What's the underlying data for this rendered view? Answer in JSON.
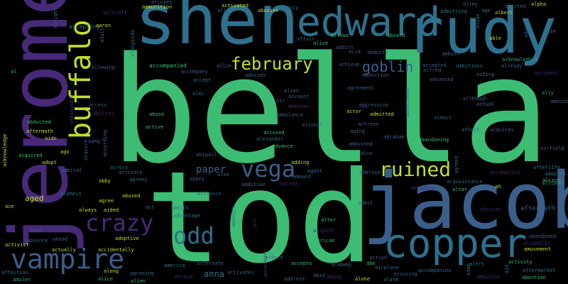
{
  "palette": {
    "background": "#000000",
    "green": "#3dbc74",
    "teal": "#2d718e",
    "blue": "#3b5f8b",
    "purple": "#482979",
    "lime": "#c1df24",
    "seafoam": "#2ea386"
  },
  "words": [
    {
      "text": "bella"
    },
    {
      "text": "tod"
    },
    {
      "text": "jacob"
    },
    {
      "text": "jerome"
    },
    {
      "text": "shen"
    },
    {
      "text": "rudy"
    },
    {
      "text": "edward"
    },
    {
      "text": "copper"
    },
    {
      "text": "buffalo"
    },
    {
      "text": "vampire"
    },
    {
      "text": "vega"
    },
    {
      "text": "crazy"
    },
    {
      "text": "odd"
    },
    {
      "text": "ruined"
    },
    {
      "text": "february"
    },
    {
      "text": "goblin"
    },
    {
      "text": "paper"
    },
    {
      "text": "anna"
    },
    {
      "text": "accompanied"
    },
    {
      "text": "allowing"
    },
    {
      "text": "accepting"
    },
    {
      "text": "abducted"
    },
    {
      "text": "aftermath"
    },
    {
      "text": "acquired"
    },
    {
      "text": "aged"
    },
    {
      "text": "activist"
    },
    {
      "text": "affection"
    },
    {
      "text": "amulet"
    },
    {
      "text": "alice"
    },
    {
      "text": "alien"
    },
    {
      "text": "agreeing"
    },
    {
      "text": "along"
    },
    {
      "text": "accidentally"
    },
    {
      "text": "actually"
    },
    {
      "text": "always"
    },
    {
      "text": "aided"
    },
    {
      "text": "adoptive"
    },
    {
      "text": "agree"
    },
    {
      "text": "abused"
    },
    {
      "text": "abby"
    },
    {
      "text": "agrees"
    },
    {
      "text": "alamein"
    },
    {
      "text": "admiral"
    },
    {
      "text": "adopt"
    },
    {
      "text": "ago"
    },
    {
      "text": "aide"
    },
    {
      "text": "abuse"
    },
    {
      "text": "active"
    },
    {
      "text": "ability"
    },
    {
      "text": "access"
    },
    {
      "text": "accompany"
    },
    {
      "text": "accept"
    },
    {
      "text": "alec"
    },
    {
      "text": "alien"
    },
    {
      "text": "account"
    },
    {
      "text": "abandon"
    },
    {
      "text": "air"
    },
    {
      "text": "alcohol"
    },
    {
      "text": "ambulance"
    },
    {
      "text": "accused"
    },
    {
      "text": "alexander"
    },
    {
      "text": "advance"
    },
    {
      "text": "adding"
    },
    {
      "text": "agent"
    },
    {
      "text": "amount"
    },
    {
      "text": "hatred"
    },
    {
      "text": "addition"
    },
    {
      "text": "alex"
    },
    {
      "text": "abigail"
    },
    {
      "text": "abbey"
    },
    {
      "text": "alliance"
    },
    {
      "text": "admits"
    },
    {
      "text": "advantage"
    },
    {
      "text": "act"
    },
    {
      "text": "alternate"
    },
    {
      "text": "america"
    },
    {
      "text": "afraid"
    },
    {
      "text": "activates"
    },
    {
      "text": "afford"
    },
    {
      "text": "accepts"
    },
    {
      "text": "american"
    },
    {
      "text": "alter"
    },
    {
      "text": "amid"
    },
    {
      "text": "address"
    },
    {
      "text": "academy"
    },
    {
      "text": "among"
    },
    {
      "text": "airplane"
    },
    {
      "text": "alone"
    },
    {
      "text": "accusing"
    },
    {
      "text": "alarm"
    },
    {
      "text": "accompanies"
    },
    {
      "text": "ambition"
    },
    {
      "text": "alert"
    },
    {
      "text": "activity"
    },
    {
      "text": "aftermarket"
    },
    {
      "text": "abortion"
    },
    {
      "text": "amusement"
    },
    {
      "text": "abandoned"
    },
    {
      "text": "aftermath"
    },
    {
      "text": "alison"
    },
    {
      "text": "adopted"
    },
    {
      "text": "afterlife"
    },
    {
      "text": "airfield"
    },
    {
      "text": "amends"
    },
    {
      "text": "ally"
    },
    {
      "text": "accident"
    },
    {
      "text": "already"
    },
    {
      "text": "acknowledges"
    },
    {
      "text": "aim"
    },
    {
      "text": "alpha"
    },
    {
      "text": "alerted"
    },
    {
      "text": "albert"
    },
    {
      "text": "admitting"
    },
    {
      "text": "age"
    },
    {
      "text": "alley"
    },
    {
      "text": "able"
    },
    {
      "text": "ambush"
    },
    {
      "text": "accepted"
    },
    {
      "text": "alfred"
    },
    {
      "text": "ambitious"
    },
    {
      "text": "advanced"
    },
    {
      "text": "acting"
    },
    {
      "text": "although"
    },
    {
      "text": "actual"
    },
    {
      "text": "almost"
    },
    {
      "text": "affect"
    },
    {
      "text": "acquires"
    },
    {
      "text": "abandoning"
    },
    {
      "text": "abraham"
    },
    {
      "text": "aggressive"
    },
    {
      "text": "admitted"
    },
    {
      "text": "actor"
    },
    {
      "text": "agreement"
    },
    {
      "text": "abduction"
    },
    {
      "text": "achieve"
    },
    {
      "text": "acid"
    },
    {
      "text": "addict"
    },
    {
      "text": "allows"
    },
    {
      "text": "aboard"
    },
    {
      "text": "affair"
    },
    {
      "text": "alive"
    },
    {
      "text": "abducts"
    },
    {
      "text": "agency"
    },
    {
      "text": "abusive"
    },
    {
      "text": "activated"
    },
    {
      "text": "align"
    },
    {
      "text": "accuses"
    },
    {
      "text": "ammunition"
    },
    {
      "text": "aircraft"
    },
    {
      "text": "alright"
    },
    {
      "text": "aaron"
    },
    {
      "text": "adult"
    },
    {
      "text": "alongside"
    },
    {
      "text": "advises"
    },
    {
      "text": "allie"
    },
    {
      "text": "acknowledge"
    },
    {
      "text": "al"
    },
    {
      "text": "ace"
    },
    {
      "text": "ahead"
    },
    {
      "text": "absence"
    },
    {
      "text": "alan"
    },
    {
      "text": "ad"
    },
    {
      "text": "airport"
    },
    {
      "text": "acquire"
    },
    {
      "text": "according"
    },
    {
      "text": "aang"
    },
    {
      "text": "across"
    },
    {
      "text": "activate"
    },
    {
      "text": "accomplice"
    },
    {
      "text": "acquaintance"
    },
    {
      "text": "altar"
    },
    {
      "text": "african"
    },
    {
      "text": "ah"
    },
    {
      "text": "agreed"
    },
    {
      "text": "ambrose"
    },
    {
      "text": "abruptly"
    },
    {
      "text": "amongst"
    },
    {
      "text": "adventure"
    },
    {
      "text": "actress"
    },
    {
      "text": "aging"
    },
    {
      "text": "additional"
    },
    {
      "text": "ambushed"
    },
    {
      "text": "also"
    },
    {
      "text": "admit"
    },
    {
      "text": "abe"
    },
    {
      "text": "action"
    },
    {
      "text": "adam"
    },
    {
      "text": "allison"
    },
    {
      "text": "alcoholic"
    },
    {
      "text": "aid"
    },
    {
      "text": "alias"
    },
    {
      "text": "advice"
    },
    {
      "text": "ambassador"
    },
    {
      "text": "arl"
    }
  ]
}
